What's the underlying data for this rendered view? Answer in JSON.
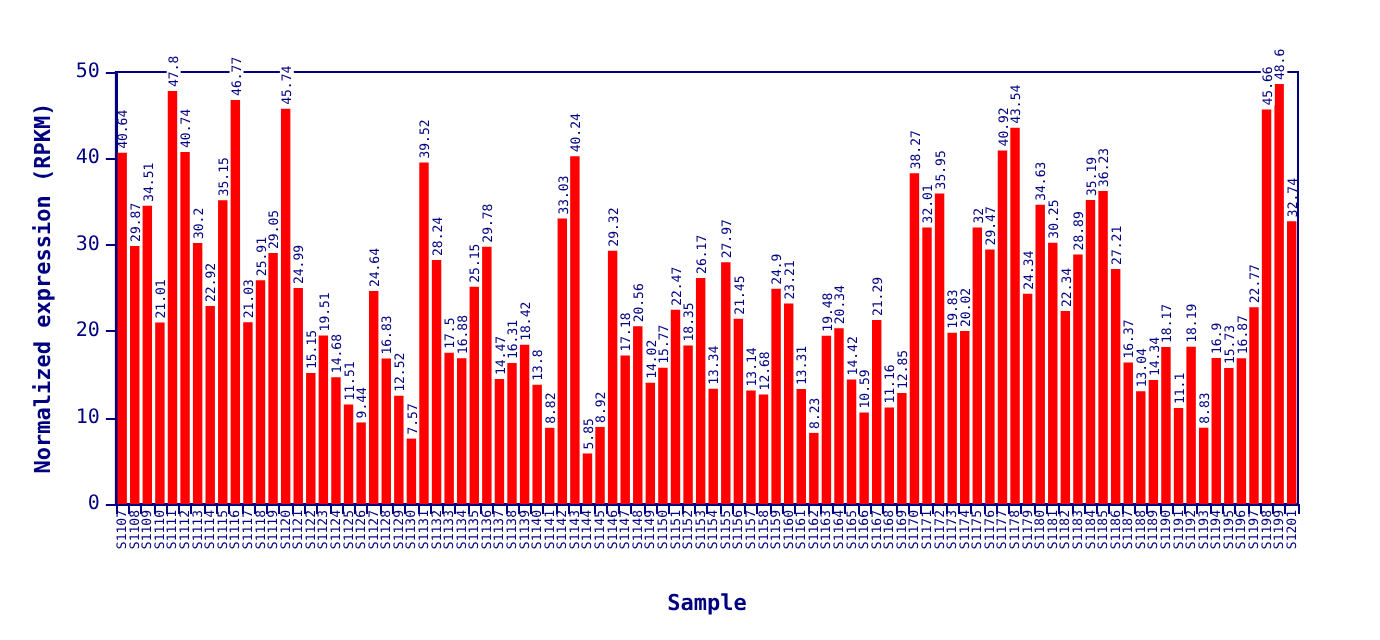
{
  "chart_data": {
    "type": "bar",
    "xlabel": "Sample",
    "ylabel": "Normalized expression (RPKM)",
    "categories": [
      "S1107",
      "S1108",
      "S1109",
      "S1110",
      "S1111",
      "S1112",
      "S1113",
      "S1114",
      "S1115",
      "S1116",
      "S1117",
      "S1118",
      "S1119",
      "S1120",
      "S1121",
      "S1122",
      "S1123",
      "S1124",
      "S1125",
      "S1126",
      "S1127",
      "S1128",
      "S1129",
      "S1130",
      "S1131",
      "S1132",
      "S1133",
      "S1134",
      "S1135",
      "S1136",
      "S1137",
      "S1138",
      "S1139",
      "S1140",
      "S1141",
      "S1142",
      "S1143",
      "S1144",
      "S1145",
      "S1146",
      "S1147",
      "S1148",
      "S1149",
      "S1150",
      "S1151",
      "S1152",
      "S1153",
      "S1154",
      "S1155",
      "S1156",
      "S1157",
      "S1158",
      "S1159",
      "S1160",
      "S1161",
      "S1162",
      "S1163",
      "S1164",
      "S1165",
      "S1166",
      "S1167",
      "S1168",
      "S1169",
      "S1170",
      "S1171",
      "S1172",
      "S1173",
      "S1174",
      "S1175",
      "S1176",
      "S1177",
      "S1178",
      "S1179",
      "S1180",
      "S1181",
      "S1182",
      "S1183",
      "S1184",
      "S1185",
      "S1186",
      "S1187",
      "S1188",
      "S1189",
      "S1190",
      "S1191",
      "S1192",
      "S1193",
      "S1194",
      "S1195",
      "S1196",
      "S1197",
      "S1198",
      "S1199",
      "S1201"
    ],
    "values": [
      40.64,
      29.87,
      34.51,
      21.01,
      47.8,
      40.74,
      30.2,
      22.92,
      35.15,
      46.77,
      21.03,
      25.91,
      29.05,
      45.74,
      24.99,
      15.15,
      19.51,
      14.68,
      11.51,
      9.44,
      24.64,
      16.83,
      12.52,
      7.57,
      39.52,
      28.24,
      17.5,
      16.88,
      25.15,
      29.78,
      14.47,
      16.31,
      18.42,
      13.8,
      8.82,
      33.03,
      40.24,
      5.85,
      8.92,
      29.32,
      17.18,
      20.56,
      14.02,
      15.77,
      22.47,
      18.35,
      26.17,
      13.34,
      27.97,
      21.45,
      13.14,
      12.68,
      24.9,
      23.21,
      13.31,
      8.23,
      19.48,
      20.34,
      14.42,
      10.59,
      21.29,
      11.16,
      12.85,
      38.27,
      32.01,
      35.95,
      19.83,
      20.02,
      32,
      29.47,
      40.92,
      43.54,
      24.34,
      34.63,
      30.25,
      22.34,
      28.89,
      35.19,
      36.23,
      27.21,
      16.37,
      13.04,
      14.34,
      18.17,
      11.1,
      18.19,
      8.83,
      16.9,
      15.73,
      16.87,
      22.77,
      45.66,
      48.6,
      32.74
    ],
    "color": "#ff0000",
    "ylim": [
      0,
      50
    ],
    "yticks": [
      0,
      10,
      20,
      30,
      40,
      50
    ],
    "grid": false,
    "data_labels": true
  }
}
